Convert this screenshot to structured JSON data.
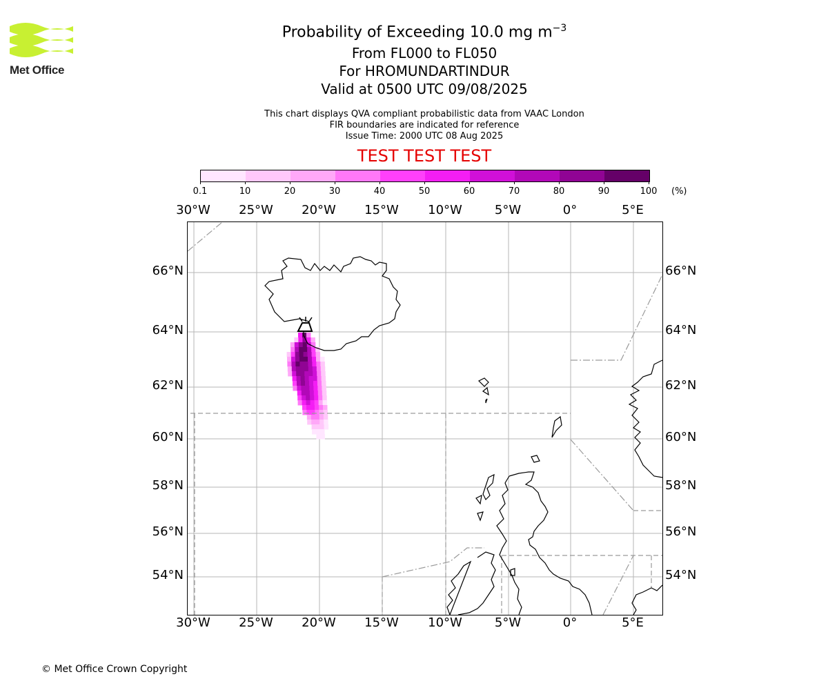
{
  "logo": {
    "text": "Met Office",
    "color": "#c8f032"
  },
  "title": {
    "main_prefix": "Probability of Exceeding 10.0 mg m",
    "main_exponent": "−3",
    "levels": "From FL000 to FL050",
    "volcano": "For HROMUNDARTINDUR",
    "valid": "Valid at 0500 UTC 09/08/2025"
  },
  "subtitle": {
    "line1": "This chart displays QVA compliant probabilistic data from VAAC London",
    "line2": "FIR boundaries are indicated for reference",
    "line3": "Issue Time: 2000 UTC 08 Aug 2025"
  },
  "banner": {
    "text": "TEST TEST TEST",
    "color": "#e50000"
  },
  "colorbar": {
    "ticks": [
      "0.1",
      "10",
      "20",
      "30",
      "40",
      "50",
      "60",
      "70",
      "80",
      "90",
      "100"
    ],
    "unit": "(%)",
    "colors": [
      "#ffe6ff",
      "#ffc8fa",
      "#ffa8f8",
      "#ff78f8",
      "#ff40fa",
      "#f41ef4",
      "#d010d8",
      "#b208b8",
      "#900494",
      "#650068"
    ]
  },
  "axes": {
    "lon_labels": [
      "30°W",
      "25°W",
      "20°W",
      "15°W",
      "10°W",
      "5°W",
      "0°",
      "5°E"
    ],
    "lat_labels": [
      "66°N",
      "64°N",
      "62°N",
      "60°N",
      "58°N",
      "56°N",
      "54°N"
    ]
  },
  "map": {
    "volcano_name": "HROMUNDARTINDUR",
    "volcano_icon": "volcano-icon",
    "plume_levels_percent": [
      5,
      15,
      25,
      35,
      45,
      55,
      65,
      75,
      85,
      95
    ]
  },
  "footer": {
    "copyright": "© Met Office Crown Copyright"
  }
}
